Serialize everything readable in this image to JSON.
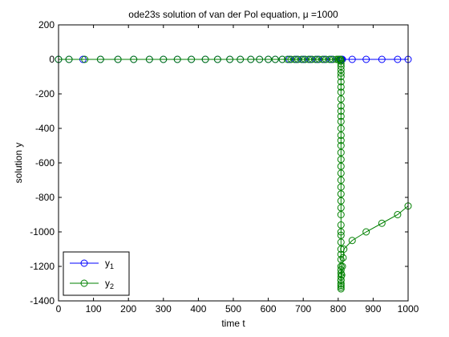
{
  "chart_data": {
    "type": "line",
    "title": "ode23s solution of van der Pol equation, μ =1000",
    "xlabel": "time t",
    "ylabel": "solution y",
    "xlim": [
      0,
      1000
    ],
    "ylim": [
      -1400,
      200
    ],
    "xticks": [
      0,
      100,
      200,
      300,
      400,
      500,
      600,
      700,
      800,
      900,
      1000
    ],
    "yticks": [
      200,
      0,
      -200,
      -400,
      -600,
      -800,
      -1000,
      -1200,
      -1400
    ],
    "grid": false,
    "legend_position": "bottom-left",
    "series": [
      {
        "name": "y1",
        "name_base": "y",
        "name_sub": "1",
        "color": "#0000ff",
        "marker": "circle",
        "x": [
          0,
          30,
          70,
          120,
          170,
          215,
          260,
          300,
          340,
          380,
          420,
          455,
          490,
          520,
          550,
          575,
          600,
          620,
          640,
          660,
          680,
          700,
          720,
          740,
          760,
          780,
          800,
          808,
          810,
          812,
          840,
          880,
          925,
          970,
          1000
        ],
        "values": [
          0,
          0,
          0,
          0,
          0,
          0,
          0,
          0,
          0,
          0,
          0,
          0,
          0,
          0,
          0,
          0,
          0,
          0,
          0,
          0,
          0,
          0,
          0,
          0,
          0,
          0,
          0,
          0,
          0,
          0,
          0,
          0,
          0,
          0,
          0
        ]
      },
      {
        "name": "y2",
        "name_base": "y",
        "name_sub": "2",
        "color": "#008000",
        "marker": "circle",
        "x": [
          0,
          30,
          75,
          120,
          170,
          215,
          260,
          300,
          340,
          380,
          420,
          455,
          490,
          520,
          550,
          575,
          600,
          620,
          640,
          655,
          665,
          675,
          685,
          695,
          705,
          715,
          725,
          735,
          745,
          755,
          765,
          775,
          785,
          795,
          800,
          804,
          806,
          807,
          808,
          808,
          808,
          808,
          808,
          808,
          808,
          808,
          808,
          808,
          808,
          808,
          808,
          808,
          808,
          808,
          808,
          808,
          808,
          808,
          808,
          808,
          808,
          808,
          808,
          808,
          808,
          808,
          808,
          808,
          808,
          808,
          808,
          808,
          808,
          808,
          808,
          808,
          808,
          808,
          808,
          808,
          808,
          808,
          808,
          810,
          812,
          814,
          816,
          840,
          880,
          925,
          970,
          1000
        ],
        "values": [
          0,
          0,
          0,
          0,
          0,
          0,
          0,
          0,
          0,
          0,
          0,
          0,
          0,
          0,
          0,
          0,
          0,
          0,
          0,
          0,
          0,
          0,
          0,
          0,
          0,
          0,
          0,
          0,
          0,
          0,
          0,
          0,
          0,
          0,
          0,
          0,
          0,
          0,
          -10,
          -25,
          -40,
          -60,
          -80,
          -100,
          -130,
          -160,
          -190,
          -230,
          -270,
          -300,
          -330,
          -360,
          -400,
          -440,
          -470,
          -500,
          -540,
          -580,
          -620,
          -660,
          -700,
          -740,
          -780,
          -820,
          -860,
          -900,
          -960,
          -1000,
          -1020,
          -1060,
          -1100,
          -1130,
          -1160,
          -1200,
          -1220,
          -1240,
          -1260,
          -1280,
          -1300,
          -1320,
          -1330,
          -1310,
          -1280,
          -1250,
          -1200,
          -1150,
          -1100,
          -1050,
          -1000,
          -950,
          -900,
          -850
        ]
      }
    ]
  }
}
